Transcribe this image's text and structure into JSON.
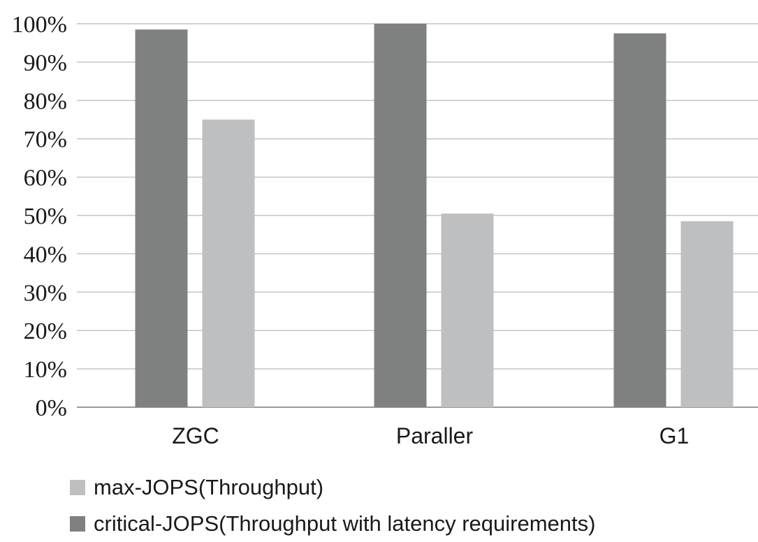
{
  "chart_data": {
    "type": "bar",
    "categories": [
      "ZGC",
      "Paraller",
      "G1"
    ],
    "series": [
      {
        "name": "critical-JOPS(Throughput with latency requirements)",
        "color": "#7f8080",
        "values": [
          98.5,
          100,
          97.5
        ]
      },
      {
        "name": "max-JOPS(Throughput)",
        "color": "#bebfc0",
        "values": [
          75,
          50.5,
          48.5
        ]
      }
    ],
    "ylim": [
      0,
      100
    ],
    "yticks": [
      "0%",
      "10%",
      "20%",
      "30%",
      "40%",
      "50%",
      "60%",
      "70%",
      "80%",
      "90%",
      "100%"
    ],
    "grid": true,
    "legend_position": "bottom-left",
    "title": "",
    "xlabel": "",
    "ylabel": ""
  },
  "legend": [
    {
      "label": "max-JOPS(Throughput)",
      "color": "#bebfc0"
    },
    {
      "label": "critical-JOPS(Throughput with latency requirements)",
      "color": "#7f8080"
    }
  ]
}
